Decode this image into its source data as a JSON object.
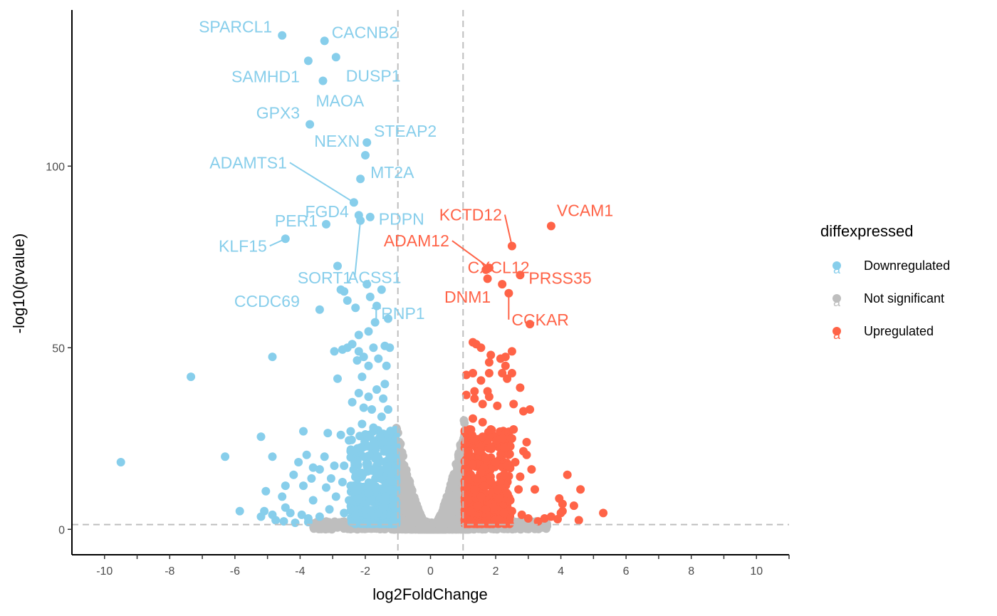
{
  "chart_data": {
    "type": "scatter",
    "xlabel": "log2FoldChange",
    "ylabel": "-log10(pvalue)",
    "xlim": [
      -11,
      11
    ],
    "ylim": [
      -7,
      143
    ],
    "x_ticks": [
      -10,
      -8,
      -6,
      -4,
      -2,
      0,
      2,
      4,
      6,
      8,
      10
    ],
    "y_ticks": [
      0,
      50,
      100
    ],
    "thresholds": {
      "vlines": [
        -1,
        1
      ],
      "hline": 1.3
    },
    "legend": {
      "title": "diffexpressed",
      "position": "right",
      "key_glyph": "a",
      "entries": [
        {
          "name": "Downregulated",
          "color": "#87CEEB"
        },
        {
          "name": "Not significant",
          "color": "#BEBEBE"
        },
        {
          "name": "Upregulated",
          "color": "#FF6347"
        }
      ]
    },
    "series": [
      {
        "name": "Downregulated",
        "color": "#87CEEB",
        "points": [
          [
            -4.55,
            136
          ],
          [
            -3.25,
            134.5
          ],
          [
            -3.75,
            129
          ],
          [
            -2.9,
            130
          ],
          [
            -3.3,
            123.5
          ],
          [
            -3.7,
            111.5
          ],
          [
            -1.95,
            106.5
          ],
          [
            -2.0,
            103
          ],
          [
            -2.15,
            96.5
          ],
          [
            -2.35,
            90
          ],
          [
            -1.85,
            86
          ],
          [
            -2.2,
            86.5
          ],
          [
            -2.15,
            85
          ],
          [
            -3.2,
            84
          ],
          [
            -4.45,
            80
          ],
          [
            -2.85,
            72.5
          ],
          [
            -2.75,
            66
          ],
          [
            -2.65,
            65.5
          ],
          [
            -2.55,
            63
          ],
          [
            -2.3,
            61
          ],
          [
            -1.95,
            67.5
          ],
          [
            -1.85,
            64
          ],
          [
            -1.5,
            66
          ],
          [
            -1.65,
            61.5
          ],
          [
            -3.4,
            60.5
          ],
          [
            -1.3,
            58
          ],
          [
            -1.7,
            57
          ],
          [
            -1.9,
            54.5
          ],
          [
            -2.2,
            53.5
          ],
          [
            -2.4,
            51
          ],
          [
            -2.55,
            50
          ],
          [
            -2.2,
            49
          ],
          [
            -2.7,
            49.5
          ],
          [
            -2.95,
            49
          ],
          [
            -1.4,
            50.5
          ],
          [
            -1.25,
            50
          ],
          [
            -1.75,
            50
          ],
          [
            -2.05,
            47.5
          ],
          [
            -2.25,
            46.5
          ],
          [
            -1.9,
            45
          ],
          [
            -1.6,
            47
          ],
          [
            -1.35,
            45
          ],
          [
            -4.85,
            47.5
          ],
          [
            -7.35,
            42
          ],
          [
            -2.85,
            41.5
          ],
          [
            -2.1,
            42
          ],
          [
            -1.4,
            40
          ],
          [
            -1.65,
            38.5
          ],
          [
            -1.9,
            36.5
          ],
          [
            -2.2,
            37.5
          ],
          [
            -2.4,
            35
          ],
          [
            -2.05,
            33.5
          ],
          [
            -1.8,
            33
          ],
          [
            -1.5,
            31
          ],
          [
            -1.3,
            33
          ],
          [
            -1.45,
            36
          ],
          [
            -1.75,
            28
          ],
          [
            -2.1,
            29
          ],
          [
            -2.45,
            27
          ],
          [
            -2.75,
            26
          ],
          [
            -3.15,
            26.5
          ],
          [
            -3.9,
            27
          ],
          [
            -2.5,
            24.5
          ],
          [
            -2.15,
            22.5
          ],
          [
            -1.85,
            25.5
          ],
          [
            -1.55,
            25.5
          ],
          [
            -1.35,
            22
          ],
          [
            -5.2,
            25.5
          ],
          [
            -2.45,
            21.5
          ],
          [
            -2.05,
            20
          ],
          [
            -1.7,
            19.5
          ],
          [
            -3.8,
            20.5
          ],
          [
            -4.85,
            20
          ],
          [
            -6.3,
            20
          ],
          [
            -9.5,
            18.5
          ],
          [
            -3.25,
            20
          ],
          [
            -2.95,
            17.5
          ],
          [
            -2.65,
            17.5
          ],
          [
            -2.35,
            16.5
          ],
          [
            -4.05,
            18.5
          ],
          [
            -3.6,
            17
          ],
          [
            -3.4,
            16.5
          ],
          [
            -4.2,
            15
          ],
          [
            -3.65,
            14
          ],
          [
            -3.05,
            14
          ],
          [
            -2.7,
            13
          ],
          [
            -2.45,
            12
          ],
          [
            -2.15,
            11.5
          ],
          [
            -1.9,
            10
          ],
          [
            -3.2,
            11.5
          ],
          [
            -3.9,
            12
          ],
          [
            -4.45,
            12
          ],
          [
            -5.05,
            10.5
          ],
          [
            -4.55,
            9
          ],
          [
            -3.6,
            8
          ],
          [
            -2.9,
            9
          ],
          [
            -2.5,
            8
          ],
          [
            -2.2,
            8.5
          ],
          [
            -4.45,
            6
          ],
          [
            -5.85,
            5
          ],
          [
            -5.1,
            5
          ],
          [
            -5.2,
            3.5
          ],
          [
            -4.85,
            4
          ],
          [
            -4.75,
            2.5
          ],
          [
            -4.3,
            4.5
          ],
          [
            -3.95,
            4
          ],
          [
            -3.75,
            3
          ],
          [
            -4.15,
            1.8
          ],
          [
            -3.4,
            3.5
          ],
          [
            -3.1,
            5.5
          ],
          [
            -2.65,
            4.5
          ],
          [
            -2.3,
            3.8
          ],
          [
            -2.0,
            5.2
          ],
          [
            -3.75,
            2
          ],
          [
            -4.5,
            2.2
          ]
        ]
      },
      {
        "name": "Upregulated",
        "color": "#FF6347",
        "points": [
          [
            3.7,
            83.5
          ],
          [
            2.5,
            78
          ],
          [
            1.8,
            72
          ],
          [
            1.7,
            71.5
          ],
          [
            2.75,
            70
          ],
          [
            2.2,
            67.5
          ],
          [
            1.75,
            69
          ],
          [
            2.4,
            65
          ],
          [
            3.05,
            56.5
          ],
          [
            1.3,
            51.5
          ],
          [
            1.4,
            51
          ],
          [
            1.55,
            50
          ],
          [
            2.3,
            47.5
          ],
          [
            2.5,
            49
          ],
          [
            2.15,
            47
          ],
          [
            1.85,
            48
          ],
          [
            1.8,
            46
          ],
          [
            2.3,
            45
          ],
          [
            2.5,
            43
          ],
          [
            2.75,
            39
          ],
          [
            2.35,
            41.5
          ],
          [
            1.1,
            42.5
          ],
          [
            1.3,
            43
          ],
          [
            1.8,
            43
          ],
          [
            2.2,
            43
          ],
          [
            1.55,
            41
          ],
          [
            1.35,
            38
          ],
          [
            1.75,
            38
          ],
          [
            1.1,
            37
          ],
          [
            1.35,
            36
          ],
          [
            1.6,
            34.5
          ],
          [
            1.8,
            36.5
          ],
          [
            2.05,
            34
          ],
          [
            2.55,
            34.5
          ],
          [
            3.05,
            33
          ],
          [
            2.85,
            32.5
          ],
          [
            1.3,
            30.5
          ],
          [
            1.6,
            29.5
          ],
          [
            1.2,
            27.5
          ],
          [
            1.85,
            27.5
          ],
          [
            2.55,
            27.5
          ],
          [
            1.35,
            25
          ],
          [
            1.6,
            25.5
          ],
          [
            2.2,
            25
          ],
          [
            2.5,
            25
          ],
          [
            2.95,
            24
          ],
          [
            1.85,
            22.5
          ],
          [
            2.25,
            22.5
          ],
          [
            1.5,
            21.5
          ],
          [
            2.85,
            21.5
          ],
          [
            2.95,
            20.5
          ],
          [
            1.7,
            19.5
          ],
          [
            2.0,
            18.5
          ],
          [
            2.35,
            17.5
          ],
          [
            2.6,
            18.5
          ],
          [
            1.3,
            18
          ],
          [
            1.55,
            15.5
          ],
          [
            2.25,
            15
          ],
          [
            2.75,
            14.5
          ],
          [
            1.4,
            14
          ],
          [
            2.15,
            13
          ],
          [
            1.65,
            12
          ],
          [
            2.05,
            11
          ],
          [
            1.35,
            11
          ],
          [
            3.1,
            16.5
          ],
          [
            4.2,
            15
          ],
          [
            2.7,
            11
          ],
          [
            3.2,
            11
          ],
          [
            4.6,
            11
          ],
          [
            1.55,
            9
          ],
          [
            2.1,
            8.5
          ],
          [
            2.45,
            8
          ],
          [
            3.95,
            8.5
          ],
          [
            4.05,
            7
          ],
          [
            4.4,
            6.5
          ],
          [
            4.05,
            5
          ],
          [
            5.3,
            4.5
          ],
          [
            4.0,
            4.5
          ],
          [
            4.55,
            2.5
          ],
          [
            3.5,
            3
          ],
          [
            3.7,
            3.5
          ],
          [
            3.9,
            2.8
          ],
          [
            3.3,
            2.2
          ],
          [
            3.0,
            3
          ],
          [
            2.8,
            4
          ],
          [
            2.5,
            5
          ],
          [
            2.25,
            4.5
          ],
          [
            1.95,
            6
          ],
          [
            1.7,
            5.5
          ],
          [
            1.45,
            6.5
          ],
          [
            1.2,
            5
          ]
        ]
      }
    ],
    "labels": [
      {
        "text": "SPARCL1",
        "x": -4.55,
        "y": 136,
        "series": "Downregulated"
      },
      {
        "text": "CACNB2",
        "x": -3.25,
        "y": 134.5,
        "series": "Downregulated"
      },
      {
        "text": "DUSP1",
        "x": -2.9,
        "y": 130,
        "series": "Downregulated"
      },
      {
        "text": "SAMHD1",
        "x": -3.75,
        "y": 129,
        "series": "Downregulated"
      },
      {
        "text": "MAOA",
        "x": -3.3,
        "y": 123.5,
        "series": "Downregulated"
      },
      {
        "text": "GPX3",
        "x": -3.7,
        "y": 111.5,
        "series": "Downregulated"
      },
      {
        "text": "STEAP2",
        "x": -2.0,
        "y": 103,
        "series": "Downregulated"
      },
      {
        "text": "NEXN",
        "x": -1.95,
        "y": 106.5,
        "series": "Downregulated"
      },
      {
        "text": "ADAMTS1",
        "x": -2.35,
        "y": 90,
        "series": "Downregulated"
      },
      {
        "text": "MT2A",
        "x": -2.15,
        "y": 96.5,
        "series": "Downregulated"
      },
      {
        "text": "FGD4",
        "x": -2.2,
        "y": 86.5,
        "series": "Downregulated"
      },
      {
        "text": "PDPN",
        "x": -1.85,
        "y": 86,
        "series": "Downregulated"
      },
      {
        "text": "PER1",
        "x": -3.2,
        "y": 84,
        "series": "Downregulated"
      },
      {
        "text": "KLF15",
        "x": -4.45,
        "y": 80,
        "series": "Downregulated"
      },
      {
        "text": "SORT1",
        "x": -2.15,
        "y": 85,
        "series": "Downregulated"
      },
      {
        "text": "ACSS1",
        "x": -2.85,
        "y": 72.5,
        "series": "Downregulated"
      },
      {
        "text": "CCDC69",
        "x": -3.4,
        "y": 60.5,
        "series": "Downregulated"
      },
      {
        "text": "TRNP1",
        "x": -1.95,
        "y": 67.5,
        "series": "Downregulated"
      },
      {
        "text": "KCTD12",
        "x": 2.5,
        "y": 78,
        "series": "Upregulated"
      },
      {
        "text": "VCAM1",
        "x": 3.7,
        "y": 83.5,
        "series": "Upregulated"
      },
      {
        "text": "ADAM12",
        "x": 1.8,
        "y": 72,
        "series": "Upregulated"
      },
      {
        "text": "CXCL12",
        "x": 1.75,
        "y": 69,
        "series": "Upregulated"
      },
      {
        "text": "PRSS35",
        "x": 2.75,
        "y": 70,
        "series": "Upregulated"
      },
      {
        "text": "DNM1",
        "x": 2.2,
        "y": 67.5,
        "series": "Upregulated"
      },
      {
        "text": "CCKAR",
        "x": 2.4,
        "y": 65,
        "series": "Upregulated"
      }
    ]
  }
}
